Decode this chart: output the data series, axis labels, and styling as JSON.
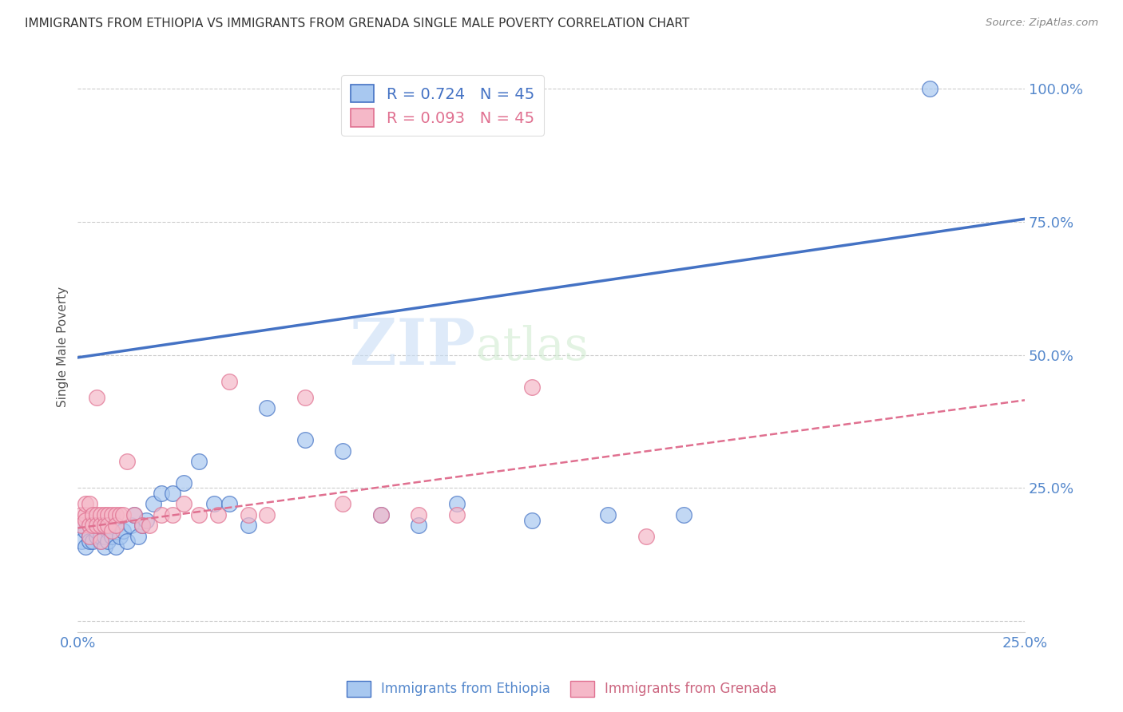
{
  "title": "IMMIGRANTS FROM ETHIOPIA VS IMMIGRANTS FROM GRENADA SINGLE MALE POVERTY CORRELATION CHART",
  "source": "Source: ZipAtlas.com",
  "ylabel_label": "Single Male Poverty",
  "xlim": [
    0.0,
    0.25
  ],
  "ylim": [
    -0.02,
    1.05
  ],
  "xticks": [
    0.0,
    0.05,
    0.1,
    0.15,
    0.2,
    0.25
  ],
  "yticks": [
    0.0,
    0.25,
    0.5,
    0.75,
    1.0
  ],
  "xticklabels": [
    "0.0%",
    "",
    "",
    "",
    "",
    "25.0%"
  ],
  "yticklabels": [
    "",
    "25.0%",
    "50.0%",
    "75.0%",
    "100.0%"
  ],
  "R_ethiopia": 0.724,
  "N_ethiopia": 45,
  "R_grenada": 0.093,
  "N_grenada": 45,
  "color_ethiopia": "#a8c8f0",
  "color_grenada": "#f5b8c8",
  "line_color_ethiopia": "#4472c4",
  "line_color_grenada": "#e07090",
  "watermark_zip": "ZIP",
  "watermark_atlas": "atlas",
  "eth_line_x0": 0.0,
  "eth_line_y0": 0.495,
  "eth_line_x1": 0.25,
  "eth_line_y1": 0.755,
  "gren_line_x0": 0.0,
  "gren_line_y0": 0.175,
  "gren_line_x1": 0.25,
  "gren_line_y1": 0.415,
  "ethiopia_x": [
    0.001,
    0.001,
    0.002,
    0.002,
    0.003,
    0.003,
    0.004,
    0.004,
    0.005,
    0.005,
    0.006,
    0.006,
    0.007,
    0.007,
    0.008,
    0.008,
    0.009,
    0.01,
    0.01,
    0.011,
    0.012,
    0.013,
    0.014,
    0.015,
    0.016,
    0.017,
    0.018,
    0.02,
    0.022,
    0.025,
    0.028,
    0.032,
    0.036,
    0.04,
    0.045,
    0.05,
    0.06,
    0.07,
    0.08,
    0.09,
    0.1,
    0.12,
    0.14,
    0.16,
    0.225
  ],
  "ethiopia_y": [
    0.18,
    0.15,
    0.17,
    0.14,
    0.16,
    0.15,
    0.18,
    0.15,
    0.16,
    0.17,
    0.15,
    0.16,
    0.14,
    0.16,
    0.17,
    0.15,
    0.16,
    0.18,
    0.14,
    0.16,
    0.17,
    0.15,
    0.18,
    0.2,
    0.16,
    0.18,
    0.19,
    0.22,
    0.24,
    0.24,
    0.26,
    0.3,
    0.22,
    0.22,
    0.18,
    0.4,
    0.34,
    0.32,
    0.2,
    0.18,
    0.22,
    0.19,
    0.2,
    0.2,
    1.0
  ],
  "grenada_x": [
    0.001,
    0.001,
    0.002,
    0.002,
    0.002,
    0.003,
    0.003,
    0.003,
    0.004,
    0.004,
    0.005,
    0.005,
    0.005,
    0.006,
    0.006,
    0.006,
    0.007,
    0.007,
    0.008,
    0.008,
    0.009,
    0.009,
    0.01,
    0.01,
    0.011,
    0.012,
    0.013,
    0.015,
    0.017,
    0.019,
    0.022,
    0.025,
    0.028,
    0.032,
    0.037,
    0.04,
    0.045,
    0.05,
    0.06,
    0.07,
    0.08,
    0.09,
    0.1,
    0.12,
    0.15
  ],
  "grenada_y": [
    0.2,
    0.18,
    0.2,
    0.22,
    0.19,
    0.18,
    0.22,
    0.16,
    0.2,
    0.18,
    0.42,
    0.2,
    0.18,
    0.2,
    0.18,
    0.15,
    0.2,
    0.18,
    0.2,
    0.18,
    0.2,
    0.17,
    0.2,
    0.18,
    0.2,
    0.2,
    0.3,
    0.2,
    0.18,
    0.18,
    0.2,
    0.2,
    0.22,
    0.2,
    0.2,
    0.45,
    0.2,
    0.2,
    0.42,
    0.22,
    0.2,
    0.2,
    0.2,
    0.44,
    0.16
  ]
}
